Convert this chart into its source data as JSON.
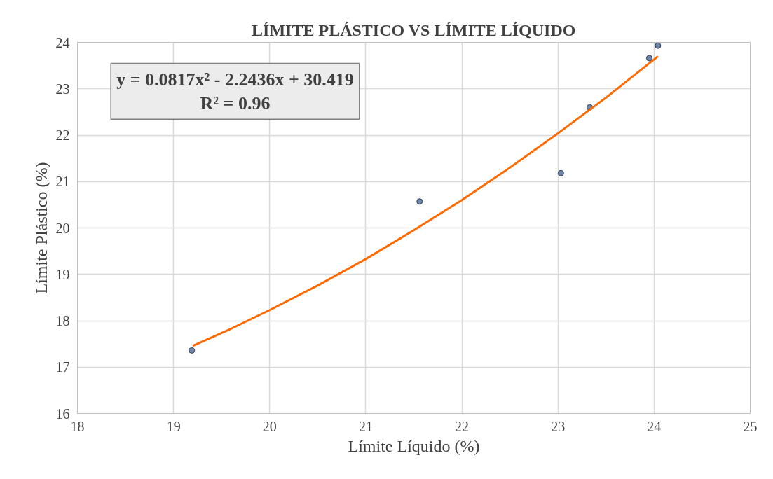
{
  "chart_data": {
    "type": "scatter",
    "title": "LÍMITE PLÁSTICO VS LÍMITE LÍQUIDO",
    "xlabel": "Límite Líquido (%)",
    "ylabel": "Límite Plástico (%)",
    "series": [
      {
        "marker": "circle",
        "color": "#6f86a8",
        "x": [
          19.19,
          21.56,
          23.03,
          23.33,
          23.95,
          24.04
        ],
        "values": [
          17.36,
          20.57,
          21.18,
          22.6,
          23.66,
          23.93
        ]
      },
      {
        "type": "line",
        "color": "#ff6a00",
        "x": [
          19.2,
          19.6,
          20,
          20.5,
          21,
          21.5,
          22,
          22.5,
          23,
          23.5,
          24.04
        ],
        "values": [
          17.46,
          17.83,
          18.23,
          18.76,
          19.33,
          19.95,
          20.6,
          21.3,
          22.04,
          22.81,
          23.7
        ]
      }
    ],
    "annotations": [
      "y = 0.0817x² - 2.2436x + 30.419",
      "R² = 0.96"
    ],
    "xlim": [
      18,
      25
    ],
    "xticks": [
      18,
      19,
      20,
      21,
      22,
      23,
      24,
      25
    ],
    "ylim": [
      16,
      24
    ],
    "yticks": [
      16,
      17,
      18,
      19,
      20,
      21,
      22,
      23,
      24
    ],
    "grid": true,
    "line_style": "solid"
  }
}
